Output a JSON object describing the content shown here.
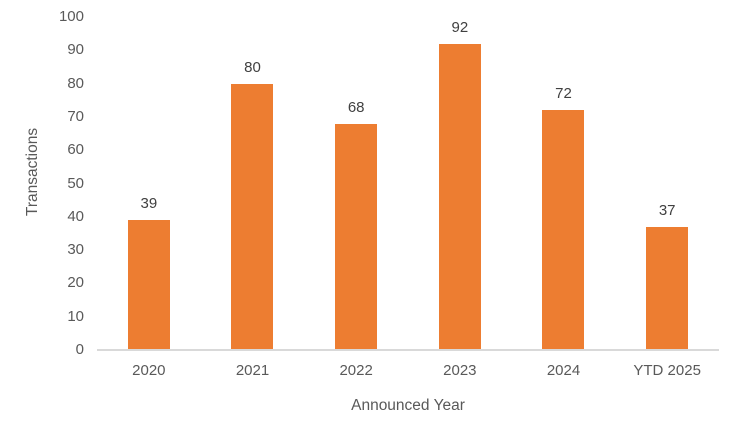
{
  "chart_data": {
    "type": "bar",
    "title": "",
    "categories": [
      "2020",
      "2021",
      "2022",
      "2023",
      "2024",
      "YTD 2025"
    ],
    "values": [
      39,
      80,
      68,
      92,
      72,
      37
    ],
    "xlabel": "Announced Year",
    "ylabel": "Transactions",
    "ylim": [
      0,
      100
    ],
    "yticks": [
      0,
      10,
      20,
      30,
      40,
      50,
      60,
      70,
      80,
      90,
      100
    ],
    "grid": false,
    "legend_position": "none",
    "bar_color": "#ED7D31",
    "value_label_color": "#404040",
    "axis_tick_color": "#595959",
    "axis_title_color": "#595959",
    "axis_line_color": "#D9D9D9",
    "background_color": "#FFFFFF"
  }
}
